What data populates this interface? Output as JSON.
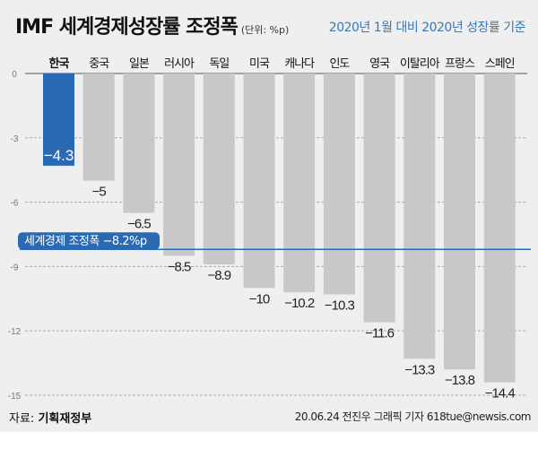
{
  "title": "IMF 세계경제성장률 조정폭",
  "unit": "(단위: %p)",
  "subtitle": "2020년 1월 대비 2020년 성장률 기준",
  "source_label": "자료:",
  "source": "기획재정부",
  "credit": "20.06.24 전진우 그래픽 기자 618tue@newsis.com",
  "chart_data": {
    "type": "bar",
    "categories": [
      "한국",
      "중국",
      "일본",
      "러시아",
      "독일",
      "미국",
      "캐나다",
      "인도",
      "영국",
      "이탈리아",
      "프랑스",
      "스페인"
    ],
    "values": [
      -4.3,
      -5,
      -6.5,
      -8.5,
      -8.9,
      -10,
      -10.2,
      -10.3,
      -11.6,
      -13.3,
      -13.8,
      -14.4
    ],
    "value_labels": [
      "-4.3",
      "-5",
      "-6.5",
      "-8.5",
      "-8.9",
      "-10",
      "-10.2",
      "-10.3",
      "-11.6",
      "-13.3",
      "-13.8",
      "-14.4"
    ],
    "yticks": [
      0,
      -3,
      -6,
      -9,
      -12,
      -15
    ],
    "ytick_labels": [
      "0",
      "-3",
      "-6",
      "-9",
      "-12",
      "-15"
    ],
    "ylim": [
      -15,
      0
    ],
    "grid": true,
    "highlight_color": "#2a6ab5",
    "bar_color": "#c8c8c8",
    "reference_line": {
      "value": -8.2,
      "label": "세계경제 조정폭 -8.2%p",
      "color": "#2a6ab5"
    }
  }
}
